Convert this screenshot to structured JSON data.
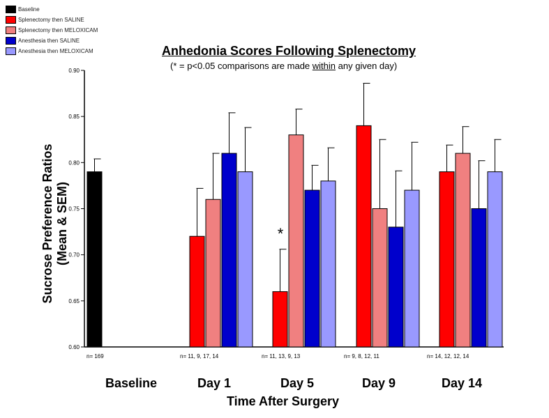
{
  "chart_data": {
    "type": "bar",
    "title": "Anhedonia Scores Following Splenectomy",
    "subtitle": {
      "prefix": "(* = p<0.05 comparisons are made ",
      "underlined": "within",
      "suffix": " any given day)"
    },
    "ylabel_line1": "Sucrose Preference Ratios",
    "ylabel_line2": "(Mean & SEM)",
    "xlabel": "Time After Surgery",
    "ylim": [
      0.6,
      0.9
    ],
    "yticks": [
      "0.60",
      "0.65",
      "0.70",
      "0.75",
      "0.80",
      "0.85",
      "0.90"
    ],
    "legend": [
      {
        "name": "Baseline",
        "color": "#000000"
      },
      {
        "name": "Splenectomy then SALINE",
        "color": "#ff0000"
      },
      {
        "name": "Splenectomy then MELOXICAM",
        "color": "#f08080"
      },
      {
        "name": "Anesthesia then SALINE",
        "color": "#0000cc"
      },
      {
        "name": "Anesthesia then MELOXICAM",
        "color": "#9999ff"
      }
    ],
    "groups": [
      {
        "label": "Baseline",
        "n_label": "n= 169",
        "bars": [
          {
            "series": "Baseline",
            "value": 0.79,
            "sem": 0.014,
            "color": "#000000"
          }
        ]
      },
      {
        "label": "Day 1",
        "n_label": "n= 11,   9,   17,   14",
        "bars": [
          {
            "series": "Splenectomy then SALINE",
            "value": 0.72,
            "sem": 0.052,
            "color": "#ff0000"
          },
          {
            "series": "Splenectomy then MELOXICAM",
            "value": 0.76,
            "sem": 0.05,
            "color": "#f08080"
          },
          {
            "series": "Anesthesia then SALINE",
            "value": 0.81,
            "sem": 0.044,
            "color": "#0000cc"
          },
          {
            "series": "Anesthesia then MELOXICAM",
            "value": 0.79,
            "sem": 0.048,
            "color": "#9999ff"
          }
        ]
      },
      {
        "label": "Day 5",
        "n_label": "n= 11,   13,    9,   13",
        "annotation": "*",
        "bars": [
          {
            "series": "Splenectomy then SALINE",
            "value": 0.66,
            "sem": 0.046,
            "color": "#ff0000"
          },
          {
            "series": "Splenectomy then MELOXICAM",
            "value": 0.83,
            "sem": 0.028,
            "color": "#f08080"
          },
          {
            "series": "Anesthesia then SALINE",
            "value": 0.77,
            "sem": 0.027,
            "color": "#0000cc"
          },
          {
            "series": "Anesthesia then MELOXICAM",
            "value": 0.78,
            "sem": 0.036,
            "color": "#9999ff"
          }
        ]
      },
      {
        "label": "Day 9",
        "n_label": "n= 9,     8,    12,   11",
        "bars": [
          {
            "series": "Splenectomy then SALINE",
            "value": 0.84,
            "sem": 0.046,
            "color": "#ff0000"
          },
          {
            "series": "Splenectomy then MELOXICAM",
            "value": 0.75,
            "sem": 0.075,
            "color": "#f08080"
          },
          {
            "series": "Anesthesia then SALINE",
            "value": 0.73,
            "sem": 0.061,
            "color": "#0000cc"
          },
          {
            "series": "Anesthesia then MELOXICAM",
            "value": 0.77,
            "sem": 0.052,
            "color": "#9999ff"
          }
        ]
      },
      {
        "label": "Day 14",
        "n_label": "n= 14,   12,   12,   14",
        "bars": [
          {
            "series": "Splenectomy then SALINE",
            "value": 0.79,
            "sem": 0.029,
            "color": "#ff0000"
          },
          {
            "series": "Splenectomy then MELOXICAM",
            "value": 0.81,
            "sem": 0.029,
            "color": "#f08080"
          },
          {
            "series": "Anesthesia then SALINE",
            "value": 0.75,
            "sem": 0.052,
            "color": "#0000cc"
          },
          {
            "series": "Anesthesia then MELOXICAM",
            "value": 0.79,
            "sem": 0.035,
            "color": "#9999ff"
          }
        ]
      }
    ]
  }
}
